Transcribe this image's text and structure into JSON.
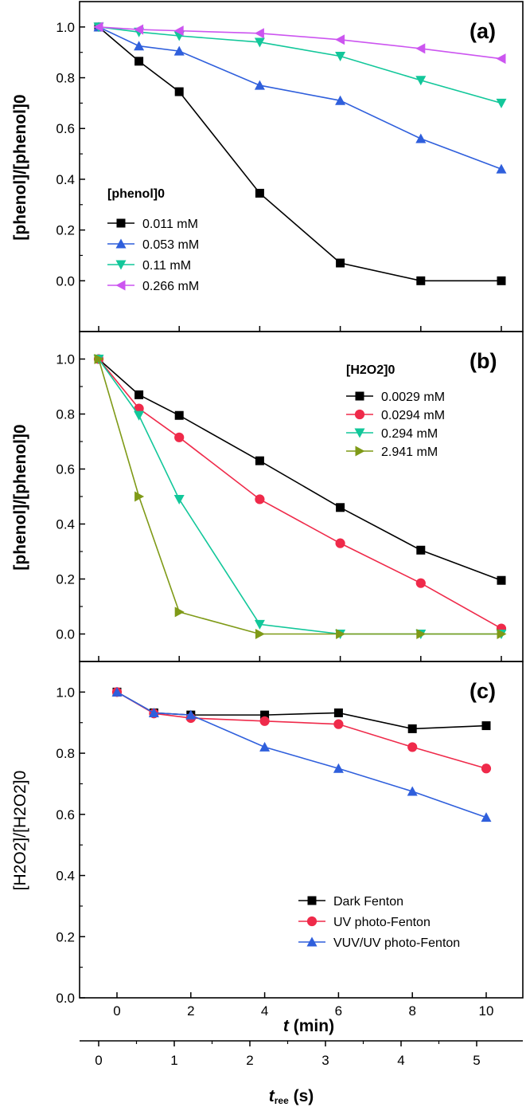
{
  "colors": {
    "black": "#000000",
    "blue": "#2f5fdc",
    "teal": "#12c79a",
    "violet": "#cc55f0",
    "red": "#ef2a4a",
    "olive": "#7f9a17"
  },
  "chart_data": [
    {
      "type": "line",
      "panel": "(a)",
      "ylabel": "[phenol]/[phenol]0",
      "ylim": [
        -0.2,
        1.1
      ],
      "yticks": [
        "0.0",
        "0.2",
        "0.4",
        "0.6",
        "0.8",
        "1.0"
      ],
      "legend_title": "[phenol]0",
      "legend_position": "middle-left",
      "series": [
        {
          "name": "0.011 mM",
          "color": "#000000",
          "marker": "square",
          "x": [
            0,
            0.5,
            1,
            2,
            3,
            4,
            5
          ],
          "y": [
            1.0,
            0.865,
            0.745,
            0.345,
            0.07,
            0.0,
            0.0
          ]
        },
        {
          "name": "0.053 mM",
          "color": "#2f5fdc",
          "marker": "triangle-up",
          "x": [
            0,
            0.5,
            1,
            2,
            3,
            4,
            5
          ],
          "y": [
            1.0,
            0.925,
            0.905,
            0.77,
            0.71,
            0.56,
            0.44
          ]
        },
        {
          "name": "0.11 mM",
          "color": "#12c79a",
          "marker": "triangle-down",
          "x": [
            0,
            0.5,
            1,
            2,
            3,
            4,
            5
          ],
          "y": [
            1.0,
            0.98,
            0.965,
            0.94,
            0.885,
            0.79,
            0.7
          ]
        },
        {
          "name": "0.266 mM",
          "color": "#cc55f0",
          "marker": "triangle-left",
          "x": [
            0,
            0.5,
            1,
            2,
            3,
            4,
            5
          ],
          "y": [
            1.0,
            0.99,
            0.985,
            0.975,
            0.95,
            0.915,
            0.875
          ]
        }
      ]
    },
    {
      "type": "line",
      "panel": "(b)",
      "ylabel": "[phenol]/[phenol]0",
      "ylim": [
        -0.1,
        1.1
      ],
      "yticks": [
        "0.0",
        "0.2",
        "0.4",
        "0.6",
        "0.8",
        "1.0"
      ],
      "legend_title": "[H2O2]0",
      "legend_position": "top-right",
      "series": [
        {
          "name": "0.0029 mM",
          "color": "#000000",
          "marker": "square",
          "x": [
            0,
            0.5,
            1,
            2,
            3,
            4,
            5
          ],
          "y": [
            1.0,
            0.87,
            0.795,
            0.63,
            0.46,
            0.305,
            0.195
          ]
        },
        {
          "name": "0.0294 mM",
          "color": "#ef2a4a",
          "marker": "circle",
          "x": [
            0,
            0.5,
            1,
            2,
            3,
            4,
            5
          ],
          "y": [
            1.0,
            0.82,
            0.715,
            0.49,
            0.33,
            0.185,
            0.02
          ]
        },
        {
          "name": "0.294 mM",
          "color": "#12c79a",
          "marker": "triangle-down",
          "x": [
            0,
            0.5,
            1,
            2,
            3,
            4,
            5
          ],
          "y": [
            1.0,
            0.795,
            0.49,
            0.035,
            0.0,
            0.0,
            0.0
          ]
        },
        {
          "name": "2.941 mM",
          "color": "#7f9a17",
          "marker": "triangle-right",
          "x": [
            0,
            0.5,
            1,
            2,
            3,
            4,
            5
          ],
          "y": [
            1.0,
            0.5,
            0.08,
            0.0,
            0.0,
            0.0,
            0.0
          ]
        }
      ]
    },
    {
      "type": "line",
      "panel": "(c)",
      "ylabel": "[H2O2]/[H2O2]0",
      "ylim": [
        0.0,
        1.1
      ],
      "yticks": [
        "0.0",
        "0.2",
        "0.4",
        "0.6",
        "0.8",
        "1.0"
      ],
      "legend_position": "bottom-right",
      "series": [
        {
          "name": "Dark Fenton",
          "color": "#000000",
          "marker": "square",
          "x": [
            0,
            1,
            2,
            4,
            6,
            8,
            10
          ],
          "y": [
            1.0,
            0.932,
            0.925,
            0.925,
            0.932,
            0.88,
            0.89
          ]
        },
        {
          "name": "UV photo-Fenton",
          "color": "#ef2a4a",
          "marker": "circle",
          "x": [
            0,
            1,
            2,
            4,
            6,
            8,
            10
          ],
          "y": [
            1.0,
            0.93,
            0.915,
            0.905,
            0.895,
            0.82,
            0.75
          ]
        },
        {
          "name": "VUV/UV photo-Fenton",
          "color": "#2f5fdc",
          "marker": "triangle-up",
          "x": [
            0,
            1,
            2,
            4,
            6,
            8,
            10
          ],
          "y": [
            1.0,
            0.932,
            0.925,
            0.82,
            0.75,
            0.675,
            0.59
          ]
        }
      ]
    }
  ],
  "axes": {
    "time_axis": {
      "label_var": "t",
      "label_unit": " (min)",
      "range": [
        -1,
        11.5
      ],
      "ticks": [
        "0",
        "2",
        "4",
        "6",
        "8",
        "10"
      ]
    },
    "residence_axis": {
      "label_var": "t",
      "label_sub": "ree",
      "label_unit": " (s)",
      "range": [
        -0.2,
        5.4
      ],
      "ticks": [
        "0",
        "1",
        "2",
        "3",
        "4",
        "5"
      ]
    }
  }
}
